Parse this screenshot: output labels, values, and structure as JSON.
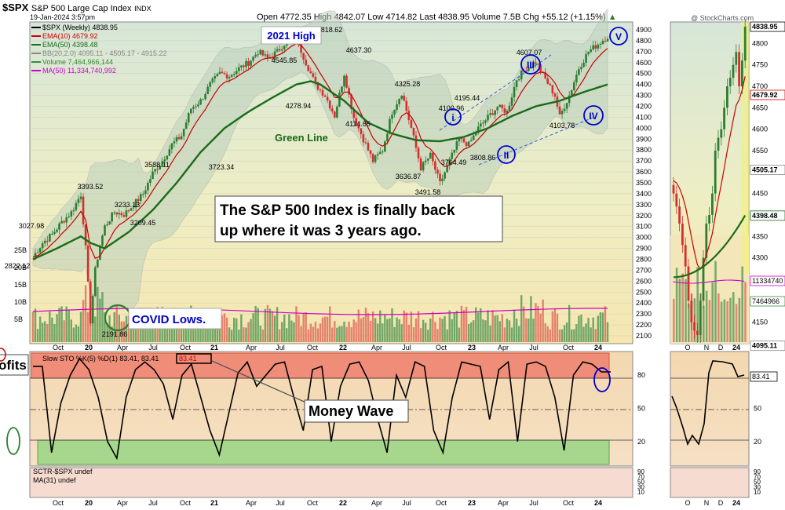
{
  "header": {
    "symbol": "$SPX",
    "name": "S&P 500 Large Cap Index",
    "exchange": "INDX",
    "date": "19-Jan-2024 3:57pm",
    "quote": "Open 4772.35  High 4842.07  Low 4714.82  Last 4838.95  Volume 7.5B  Chg +55.12 (+1.15%)",
    "quote_arrow": "▲",
    "watermark": "@ StockCharts.com"
  },
  "legend": [
    {
      "text": "$SPX (Weekly) 4838.95",
      "color": "#000000"
    },
    {
      "text": "EMA(10) 4679.92",
      "color": "#cc0000"
    },
    {
      "text": "EMA(50) 4398.48",
      "color": "#1a6b1a"
    },
    {
      "text": "BB(20,2.0) 4095.11 - 4505.17 - 4915.22",
      "color": "#888888"
    },
    {
      "text": "Volume 7,464,966,144",
      "color": "#3a8a3a"
    },
    {
      "text": "MA(50) 11,334,740,992",
      "color": "#cc00cc"
    }
  ],
  "annotations": {
    "high_2021": "2021 High",
    "green_line": "Green Line",
    "main_text": "The S&P 500 Index is finally back up where it was 3 years ago.",
    "covid": "COVID Lows.",
    "money_wave": "Money Wave",
    "profits": "ofits",
    "wave_i": "i",
    "wave_ii": "II",
    "wave_iii": "III",
    "wave_iv": "IV",
    "wave_v": "V"
  },
  "colors": {
    "price_bg": "#f0edb8",
    "band": "#c9d9c4",
    "up": "#2e7d32",
    "down": "#d32f2f",
    "ema10": "#cc0000",
    "ema50": "#1a6b1a",
    "vol_ma": "#cc00cc",
    "red_zone": "#f08070",
    "green_zone": "#9ad684",
    "label_blue": "#0000cc"
  },
  "chart_data": {
    "type": "candlestick",
    "title": "$SPX S&P 500 Large Cap Index (Weekly)",
    "price_axis": {
      "min": 2100,
      "max": 4900,
      "ticks": [
        4900,
        4800,
        4700,
        4600,
        4500,
        4400,
        4300,
        4200,
        4100,
        4000,
        3900,
        3800,
        3700,
        3600,
        3500,
        3400,
        3300,
        3200,
        3100,
        3000,
        2900,
        2800,
        2700,
        2600,
        2500,
        2400,
        2300,
        2200,
        2100
      ]
    },
    "volume_axis": {
      "ticks": [
        "25B",
        "20B",
        "15B",
        "10B",
        "5B"
      ]
    },
    "x_ticks": [
      "Oct",
      "20",
      "Apr",
      "Jul",
      "Oct",
      "21",
      "Apr",
      "Jul",
      "Oct",
      "22",
      "Apr",
      "Jul",
      "Oct",
      "23",
      "Apr",
      "Jul",
      "Oct",
      "24"
    ],
    "close_series": {
      "x": [
        0,
        4,
        8,
        12,
        16,
        20,
        22,
        24,
        26,
        28,
        30,
        34,
        38,
        42,
        46,
        50,
        54,
        58,
        62,
        66,
        70,
        74,
        78,
        82,
        86,
        90,
        94,
        98,
        102,
        106,
        110,
        114,
        118,
        122,
        126,
        130,
        134,
        138,
        142,
        146,
        150,
        154,
        158,
        162,
        166,
        170,
        174,
        178,
        182,
        186,
        190,
        194,
        198,
        202,
        206,
        210,
        214,
        218,
        220,
        224,
        228,
        232,
        236,
        240
      ],
      "y": [
        2822,
        2950,
        3028,
        3140,
        3230,
        3393,
        2900,
        2237,
        2700,
        2930,
        3100,
        3233,
        3209,
        3300,
        3400,
        3588,
        3700,
        3850,
        3930,
        4180,
        4250,
        4400,
        4500,
        4480,
        4546,
        4600,
        4700,
        4637,
        4700,
        4800,
        4818,
        4600,
        4400,
        4300,
        4114,
        4500,
        4100,
        3900,
        3700,
        3800,
        4150,
        4325,
        4000,
        3637,
        3750,
        3491,
        3700,
        3900,
        3850,
        4000,
        4100,
        4195,
        4150,
        4450,
        4550,
        4607,
        4450,
        4300,
        4104,
        4300,
        4550,
        4700,
        4770,
        4839
      ]
    },
    "ema50_series": {
      "x": [
        0,
        10,
        20,
        24,
        30,
        40,
        50,
        60,
        70,
        80,
        90,
        100,
        110,
        116,
        120,
        130,
        140,
        150,
        160,
        170,
        180,
        190,
        200,
        210,
        220,
        230,
        240
      ],
      "y": [
        2800,
        2900,
        3010,
        2950,
        2900,
        3050,
        3250,
        3500,
        3780,
        4000,
        4150,
        4280,
        4400,
        4430,
        4400,
        4250,
        4050,
        3950,
        3890,
        3880,
        3920,
        4000,
        4110,
        4200,
        4250,
        4330,
        4400
      ]
    },
    "price_labels": [
      "3027.98",
      "2822.12",
      "3393.52",
      "3233.13",
      "3209.45",
      "3588.11",
      "3723.34",
      "4278.94",
      "4545.85",
      "4818.62",
      "4637.30",
      "4114.65",
      "4325.28",
      "3636.87",
      "3491.58",
      "4100.96",
      "4195.44",
      "3764.49",
      "3808.86",
      "4607.07",
      "4103.78",
      "2191.86"
    ],
    "last_price": "4838.95",
    "stochastic": {
      "label": "Slow STO %K(5) %D(1) 83.41, 83.41",
      "value": "83.41",
      "range": [
        0,
        100
      ],
      "ticks": [
        "80",
        "50",
        "20"
      ],
      "k": [
        88,
        88,
        10,
        55,
        80,
        95,
        85,
        60,
        20,
        5,
        60,
        85,
        92,
        85,
        72,
        40,
        80,
        90,
        60,
        30,
        8,
        45,
        82,
        92,
        70,
        80,
        90,
        92,
        60,
        30,
        85,
        88,
        20,
        70,
        90,
        92,
        75,
        40,
        10,
        80,
        60,
        92,
        88,
        30,
        10,
        60,
        92,
        90,
        88,
        40,
        85,
        92,
        20,
        90,
        92,
        88,
        60,
        12,
        80,
        92,
        90,
        83,
        83
      ]
    },
    "sctr": {
      "label": "SCTR-$SPX undef",
      "ma_label": "MA(31) undef",
      "ticks": [
        "90",
        "70",
        "50",
        "30",
        "10"
      ]
    },
    "inset": {
      "axis_ticks": [
        "4800",
        "4750",
        "4700",
        "4650",
        "4600",
        "4550",
        "4500",
        "4450",
        "4400",
        "4350",
        "4300",
        "4250",
        "4200",
        "4150"
      ],
      "x_ticks": [
        "O",
        "N",
        "D",
        "24"
      ],
      "labels": {
        "last": "4838.95",
        "ema10": "4679.92",
        "bb_mid": "4505.17",
        "ema50": "4398.48",
        "vol_ma": "11334740",
        "vol": "7464966",
        "bb_low": "4095.11",
        "sto": "83.41"
      },
      "sto_ticks": [
        "80",
        "50",
        "20"
      ],
      "sctr_ticks": [
        "90",
        "70",
        "50",
        "30",
        "10"
      ]
    }
  }
}
